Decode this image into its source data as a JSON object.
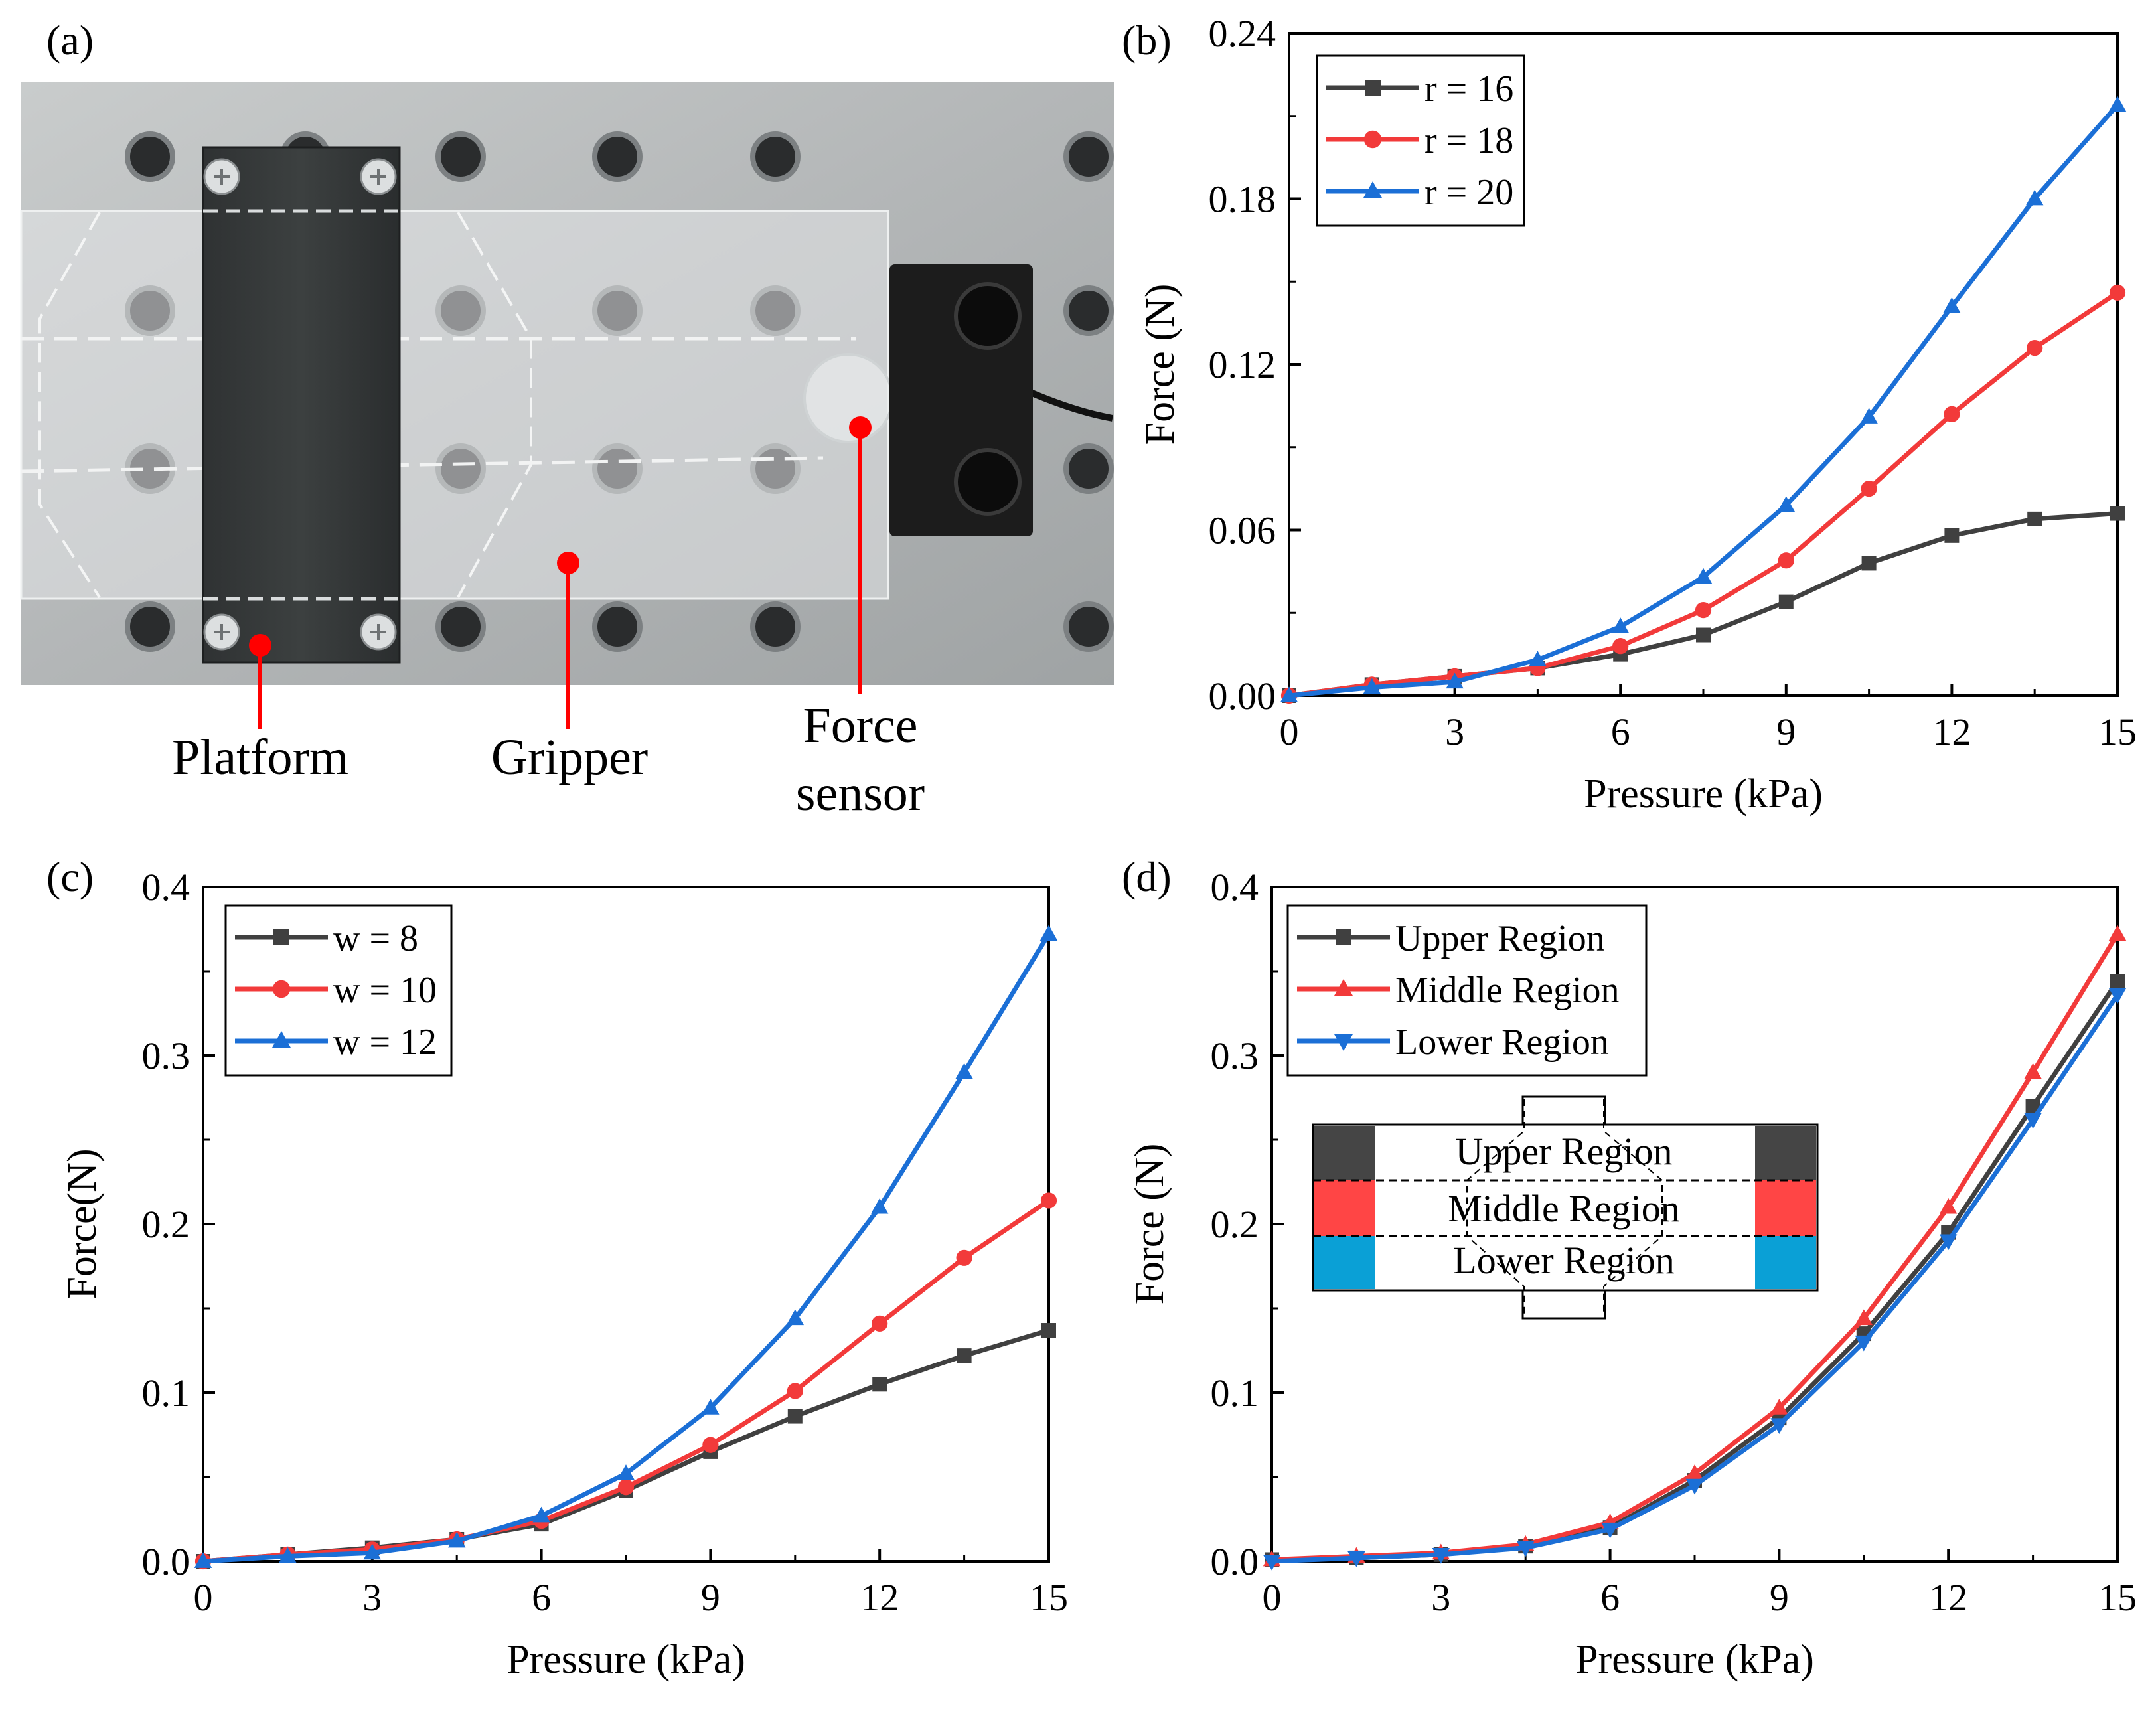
{
  "panels": {
    "a": {
      "tag": "(a)"
    },
    "b": {
      "tag": "(b)"
    },
    "c": {
      "tag": "(c)"
    },
    "d": {
      "tag": "(d)"
    }
  },
  "photo": {
    "labels": {
      "platform": "Platform",
      "gripper": "Gripper",
      "force_line1": "Force",
      "force_line2": "sensor"
    },
    "colors": {
      "marker": "#ff0000",
      "plate": "#b9bcbd",
      "sensor": "#1c1c1c"
    }
  },
  "inset": {
    "upper": "Upper Region",
    "middle": "Middle Region",
    "lower": "Lower Region",
    "colors": {
      "upper": "#454545",
      "middle": "#ff4545",
      "lower": "#0aa0d6"
    }
  },
  "chart_data": [
    {
      "id": "b",
      "type": "line",
      "xlabel": "Pressure (kPa)",
      "ylabel": "Force (N)",
      "xlim": [
        0,
        15
      ],
      "ylim": [
        0,
        0.24
      ],
      "xticks": [
        0,
        3,
        6,
        9,
        12,
        15
      ],
      "xtick_labels": [
        "0",
        "3",
        "6",
        "9",
        "12",
        "15"
      ],
      "yticks": [
        0,
        0.06,
        0.12,
        0.18,
        0.24
      ],
      "ytick_labels": [
        "0.00",
        "0.06",
        "0.12",
        "0.18",
        "0.24"
      ],
      "legend_position": "top-left",
      "x": [
        0,
        1.5,
        3,
        4.5,
        6,
        7.5,
        9,
        10.5,
        12,
        13.5,
        15
      ],
      "series": [
        {
          "name": "r = 16",
          "color": "#404040",
          "marker": "square",
          "values": [
            0.0,
            0.004,
            0.007,
            0.01,
            0.015,
            0.022,
            0.034,
            0.048,
            0.058,
            0.064,
            0.066
          ]
        },
        {
          "name": "r = 18",
          "color": "#f23a3a",
          "marker": "circle",
          "values": [
            0.0,
            0.004,
            0.007,
            0.01,
            0.018,
            0.031,
            0.049,
            0.075,
            0.102,
            0.126,
            0.146
          ]
        },
        {
          "name": "r = 20",
          "color": "#1b6fd6",
          "marker": "triangle-up",
          "values": [
            0.0,
            0.003,
            0.005,
            0.013,
            0.025,
            0.043,
            0.069,
            0.101,
            0.141,
            0.18,
            0.214
          ]
        }
      ]
    },
    {
      "id": "c",
      "type": "line",
      "xlabel": "Pressure (kPa)",
      "ylabel": "Force(N)",
      "xlim": [
        0,
        15
      ],
      "ylim": [
        0,
        0.4
      ],
      "xticks": [
        0,
        3,
        6,
        9,
        12,
        15
      ],
      "xtick_labels": [
        "0",
        "3",
        "6",
        "9",
        "12",
        "15"
      ],
      "yticks": [
        0,
        0.1,
        0.2,
        0.3,
        0.4
      ],
      "ytick_labels": [
        "0.0",
        "0.1",
        "0.2",
        "0.3",
        "0.4"
      ],
      "legend_position": "top-left",
      "x": [
        0,
        1.5,
        3,
        4.5,
        6,
        7.5,
        9,
        10.5,
        12,
        13.5,
        15
      ],
      "series": [
        {
          "name": "w = 8",
          "color": "#404040",
          "marker": "square",
          "values": [
            0.0,
            0.004,
            0.008,
            0.013,
            0.022,
            0.042,
            0.065,
            0.086,
            0.105,
            0.122,
            0.137
          ]
        },
        {
          "name": "w = 10",
          "color": "#f23a3a",
          "marker": "circle",
          "values": [
            0.0,
            0.004,
            0.007,
            0.013,
            0.024,
            0.044,
            0.069,
            0.101,
            0.141,
            0.18,
            0.214
          ]
        },
        {
          "name": "w = 12",
          "color": "#1b6fd6",
          "marker": "triangle-up",
          "values": [
            0.0,
            0.003,
            0.005,
            0.012,
            0.027,
            0.052,
            0.091,
            0.144,
            0.21,
            0.29,
            0.372
          ]
        }
      ]
    },
    {
      "id": "d",
      "type": "line",
      "xlabel": "Pressure (kPa)",
      "ylabel": "Force (N)",
      "xlim": [
        0,
        15
      ],
      "ylim": [
        0,
        0.4
      ],
      "xticks": [
        0,
        3,
        6,
        9,
        12,
        15
      ],
      "xtick_labels": [
        "0",
        "3",
        "6",
        "9",
        "12",
        "15"
      ],
      "yticks": [
        0,
        0.1,
        0.2,
        0.3,
        0.4
      ],
      "ytick_labels": [
        "0.0",
        "0.1",
        "0.2",
        "0.3",
        "0.4"
      ],
      "legend_position": "top-left",
      "x": [
        0,
        1.5,
        3,
        4.5,
        6,
        7.5,
        9,
        10.5,
        12,
        13.5,
        15
      ],
      "series": [
        {
          "name": "Upper Region",
          "color": "#404040",
          "marker": "square",
          "values": [
            0.001,
            0.002,
            0.004,
            0.009,
            0.02,
            0.048,
            0.085,
            0.135,
            0.195,
            0.27,
            0.344
          ]
        },
        {
          "name": "Middle Region",
          "color": "#f23a3a",
          "marker": "triangle-up",
          "values": [
            0.001,
            0.003,
            0.005,
            0.01,
            0.023,
            0.052,
            0.091,
            0.144,
            0.21,
            0.29,
            0.372
          ]
        },
        {
          "name": "Lower Region",
          "color": "#1b6fd6",
          "marker": "triangle-down",
          "values": [
            0.0,
            0.002,
            0.004,
            0.008,
            0.019,
            0.045,
            0.081,
            0.13,
            0.19,
            0.262,
            0.336
          ]
        }
      ]
    }
  ]
}
